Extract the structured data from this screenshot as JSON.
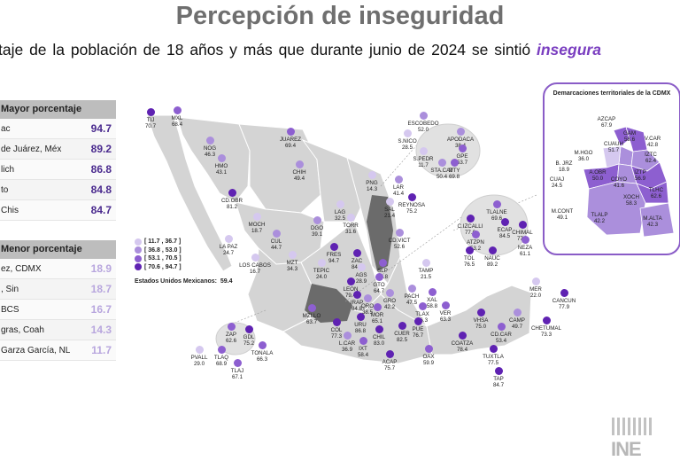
{
  "title": "Percepción de inseguridad",
  "subtitle": {
    "text": "taje de la población de 18 años y más que durante junio de 2024 se sintió",
    "emphasis": "insegura"
  },
  "top_panel": {
    "header": "Mayor porcentaje",
    "rows": [
      {
        "label": "ac",
        "value": "94.7"
      },
      {
        "label": "de Juárez, Méx",
        "value": "89.2"
      },
      {
        "label": "lich",
        "value": "86.8"
      },
      {
        "label": "to",
        "value": "84.8"
      },
      {
        "label": "Chis",
        "value": "84.7"
      }
    ]
  },
  "low_panel": {
    "header": "Menor porcentaje",
    "rows": [
      {
        "label": "ez, CDMX",
        "value": "18.9"
      },
      {
        "label": ", Sin",
        "value": "18.7"
      },
      {
        "label": "BCS",
        "value": "16.7"
      },
      {
        "label": "gras, Coah",
        "value": "14.3"
      },
      {
        "label": "Garza García, NL",
        "value": "11.7"
      }
    ]
  },
  "legend": [
    {
      "label": "[ 11.7 , 36.7 ]",
      "color": "#d5c8ef"
    },
    {
      "label": "[ 36.8 , 53.0 ]",
      "color": "#ab8fdc"
    },
    {
      "label": "[ 53.1 , 70.5 ]",
      "color": "#8d5fd0"
    },
    {
      "label": "[ 70.6 , 94.7 ]",
      "color": "#5f22b2"
    }
  ],
  "national": {
    "label": "Estados Unidos Mexicanos:",
    "value": "59.4"
  },
  "cities": [
    {
      "name": "TIJ",
      "value": "70.7"
    },
    {
      "name": "MXL",
      "value": "68.4"
    },
    {
      "name": "NOG",
      "value": "46.3"
    },
    {
      "name": "HMO",
      "value": "43.1"
    },
    {
      "name": "JUAREZ",
      "value": "69.4"
    },
    {
      "name": "CHIH",
      "value": "49.4"
    },
    {
      "name": "CD.OBR",
      "value": "81.2"
    },
    {
      "name": "LA PAZ",
      "value": "24.7"
    },
    {
      "name": "LOS CABOS",
      "value": "16.7"
    },
    {
      "name": "MOCH",
      "value": "18.7"
    },
    {
      "name": "CUL",
      "value": "44.7"
    },
    {
      "name": "MZT",
      "value": "34.3"
    },
    {
      "name": "DGO",
      "value": "39.1"
    },
    {
      "name": "LAG",
      "value": "32.5"
    },
    {
      "name": "TORR",
      "value": "31.6"
    },
    {
      "name": "PNG",
      "value": "14.3"
    },
    {
      "name": "LAR",
      "value": "41.4"
    },
    {
      "name": "SAL",
      "value": "21.4"
    },
    {
      "name": "REYNOSA",
      "value": "75.2"
    },
    {
      "name": "ESCOBEDO",
      "value": "52.0"
    },
    {
      "name": "S.NICO",
      "value": "28.5"
    },
    {
      "name": "APODACA",
      "value": "38.4"
    },
    {
      "name": "S.PEDR",
      "value": "11.7"
    },
    {
      "name": "GPE",
      "value": "53.7"
    },
    {
      "name": "STA.CAT",
      "value": "50.4"
    },
    {
      "name": "MTY",
      "value": "69.8"
    },
    {
      "name": "TLALNE",
      "value": "69.6"
    },
    {
      "name": "C.IZCALLI",
      "value": "77.0"
    },
    {
      "name": "ECAP",
      "value": "84.5"
    },
    {
      "name": "CHIMAL",
      "value": "77.3"
    },
    {
      "name": "ATZPN",
      "value": "53.2"
    },
    {
      "name": "NEZA",
      "value": "61.1"
    },
    {
      "name": "TOL",
      "value": "76.5"
    },
    {
      "name": "NAUC",
      "value": "89.2"
    },
    {
      "name": "FRES",
      "value": "94.7"
    },
    {
      "name": "ZAC",
      "value": "84.7"
    },
    {
      "name": "TEPIC",
      "value": "24.0"
    },
    {
      "name": "AGS",
      "value": "28.9"
    },
    {
      "name": "SLP",
      "value": "66.8"
    },
    {
      "name": "CD.VICT",
      "value": "52.6"
    },
    {
      "name": "TAMP",
      "value": "21.5"
    },
    {
      "name": "LEON",
      "value": "79.4"
    },
    {
      "name": "GTO",
      "value": "64.7"
    },
    {
      "name": "GRO",
      "value": "42.2"
    },
    {
      "name": "PACH",
      "value": "47.5"
    },
    {
      "name": "XAL",
      "value": "58.8"
    },
    {
      "name": "IRAP",
      "value": "84.8"
    },
    {
      "name": "QRO",
      "value": "38.5"
    },
    {
      "name": "MOR",
      "value": "65.1"
    },
    {
      "name": "TLAX",
      "value": "56.3"
    },
    {
      "name": "VER",
      "value": "63.3"
    },
    {
      "name": "MZLLO",
      "value": "63.7"
    },
    {
      "name": "COL",
      "value": "77.3"
    },
    {
      "name": "URU",
      "value": "86.8"
    },
    {
      "name": "CUER",
      "value": "82.5"
    },
    {
      "name": "PUE",
      "value": "76.7"
    },
    {
      "name": "ZAP",
      "value": "62.6"
    },
    {
      "name": "GDL",
      "value": "75.2"
    },
    {
      "name": "TONALA",
      "value": "66.3"
    },
    {
      "name": "TLAQ",
      "value": "68.9"
    },
    {
      "name": "TLAJ",
      "value": "67.1"
    },
    {
      "name": "PVALL",
      "value": "29.0"
    },
    {
      "name": "L.CAR",
      "value": "36.9"
    },
    {
      "name": "IXT",
      "value": "58.4"
    },
    {
      "name": "CHIL",
      "value": "83.0"
    },
    {
      "name": "ACAP",
      "value": "75.7"
    },
    {
      "name": "OAX",
      "value": "59.9"
    },
    {
      "name": "COATZA",
      "value": "78.4"
    },
    {
      "name": "VHSA",
      "value": "75.0"
    },
    {
      "name": "CAMP",
      "value": "49.7"
    },
    {
      "name": "CD.CAR",
      "value": "53.4"
    },
    {
      "name": "TUXTLA",
      "value": "77.5"
    },
    {
      "name": "TAP",
      "value": "84.7"
    },
    {
      "name": "MER",
      "value": "22.0"
    },
    {
      "name": "CANCUN",
      "value": "77.9"
    },
    {
      "name": "CHETUMAL",
      "value": "73.3"
    }
  ],
  "cdmx": {
    "title": "Demarcaciones territoriales de la CDMX",
    "alcaldias": [
      {
        "name": "AZCAP",
        "value": "67.9"
      },
      {
        "name": "GAM",
        "value": "58.6"
      },
      {
        "name": "V.CAR",
        "value": "42.8"
      },
      {
        "name": "CUAUH",
        "value": "51.7"
      },
      {
        "name": "M.HGO",
        "value": "36.0"
      },
      {
        "name": "IZTC",
        "value": "62.4"
      },
      {
        "name": "B. JRZ",
        "value": "18.9"
      },
      {
        "name": "CUAJ",
        "value": "24.5"
      },
      {
        "name": "A.OBR",
        "value": "50.0"
      },
      {
        "name": "COYO",
        "value": "41.6"
      },
      {
        "name": "IZTP",
        "value": "56.9"
      },
      {
        "name": "TLHC",
        "value": "62.6"
      },
      {
        "name": "XOCH",
        "value": "58.3"
      },
      {
        "name": "M.CONT",
        "value": "49.1"
      },
      {
        "name": "TLALP",
        "value": "42.2"
      },
      {
        "name": "M.ALTA",
        "value": "42.3"
      }
    ]
  },
  "colors": {
    "title_gray": "#6f6f6f",
    "accent_purple": "#7a3ec0",
    "state_gray": "#d4d4d4",
    "state_highlight": "#6b6b6b"
  },
  "logo": "INE"
}
